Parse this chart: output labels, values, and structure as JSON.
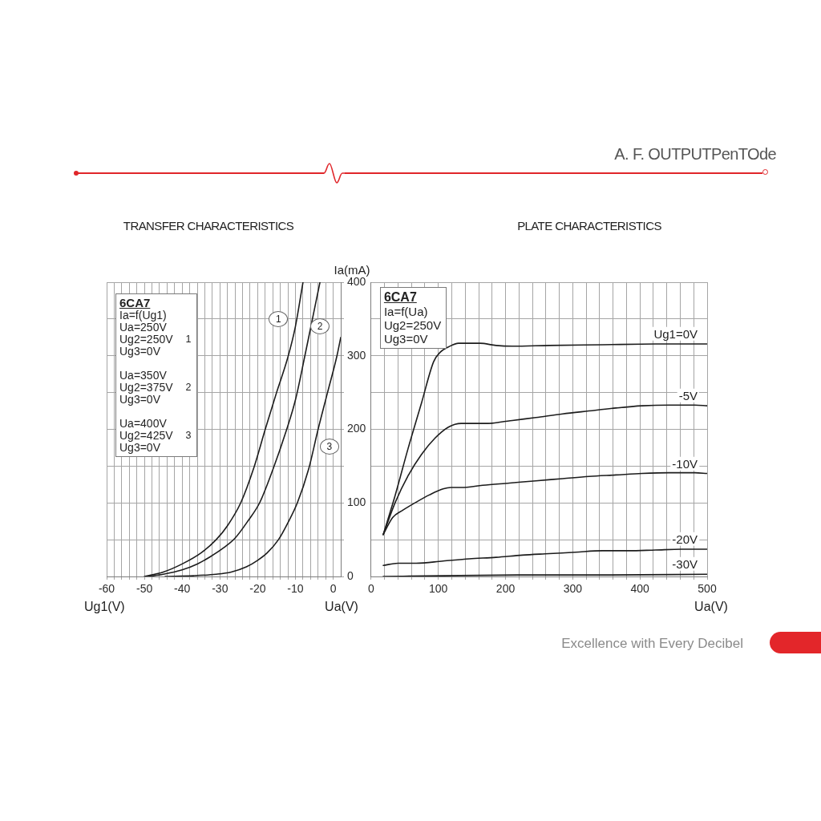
{
  "chart_data": [
    {
      "type": "line",
      "title": "TRANSFER CHARACTERISTICS",
      "xlabel": "Ug1(V)",
      "ylabel": "Ia(mA)",
      "series": [
        {
          "color": "#1c1c1c",
          "x": [
            -50,
            -45,
            -40,
            -35,
            -31,
            -28,
            -24.5,
            -21,
            -18,
            -15,
            -12,
            -10,
            -8
          ],
          "values": [
            0,
            6,
            17,
            32,
            50,
            69,
            100,
            148,
            200,
            250,
            298,
            340,
            400
          ]
        },
        {
          "color": "#1c1c1c",
          "x": [
            -49,
            -45,
            -40,
            -36,
            -32.5,
            -29,
            -26,
            -22.5,
            -19.5,
            -16,
            -12.5,
            -10,
            -7.5,
            -5.5,
            -3.5
          ],
          "values": [
            0,
            3,
            9,
            17,
            27,
            39,
            52,
            76,
            100,
            145,
            197,
            240,
            300,
            350,
            400
          ]
        },
        {
          "color": "#1c1c1c",
          "x": [
            -44.5,
            -37,
            -31,
            -27,
            -23,
            -20,
            -17.5,
            -14.5,
            -12,
            -9.5,
            -6.5,
            -4,
            -1.5,
            1,
            2
          ],
          "values": [
            0,
            1,
            3,
            6,
            13,
            22,
            32,
            50,
            73,
            100,
            146,
            200,
            250,
            300,
            325
          ]
        }
      ],
      "xlim": [
        -60,
        2
      ],
      "xticks": [
        -60,
        {
          "value": -58,
          "label": null
        },
        {
          "value": -56,
          "label": null
        },
        {
          "value": -54,
          "label": null
        },
        {
          "value": -52,
          "label": null
        },
        -50,
        {
          "value": -48,
          "label": null
        },
        {
          "value": -46,
          "label": null
        },
        {
          "value": -44,
          "label": null
        },
        {
          "value": -42,
          "label": null
        },
        -40,
        {
          "value": -38,
          "label": null
        },
        {
          "value": -36,
          "label": null
        },
        {
          "value": -34,
          "label": null
        },
        {
          "value": -32,
          "label": null
        },
        -30,
        {
          "value": -28,
          "label": null
        },
        {
          "value": -26,
          "label": null
        },
        {
          "value": -24,
          "label": null
        },
        {
          "value": -22,
          "label": null
        },
        -20,
        {
          "value": -18,
          "label": null
        },
        {
          "value": -16,
          "label": null
        },
        {
          "value": -14,
          "label": null
        },
        {
          "value": -12,
          "label": null
        },
        -10,
        {
          "value": -8,
          "label": null
        },
        {
          "value": -6,
          "label": null
        },
        {
          "value": -4,
          "label": null
        },
        {
          "value": -2,
          "label": null
        },
        0
      ],
      "ylim": [
        0,
        400
      ],
      "yticks": [
        0,
        {
          "value": 50,
          "label": null
        },
        100,
        {
          "value": 150,
          "label": null
        },
        200,
        {
          "value": 250,
          "label": null
        },
        300,
        {
          "value": 350,
          "label": null
        },
        400
      ],
      "grid": true,
      "marker": "none",
      "line_style": "solid",
      "annotations": [
        {
          "text": "1",
          "x": -14.5,
          "y": 350
        },
        {
          "text": "2",
          "x": -3.5,
          "y": 340
        },
        {
          "text": "3",
          "x": -1,
          "y": 177
        },
        "6CA7",
        "Ia=f(Ug1)",
        "Ua=250V\nUg2=250V\nUg3=0V",
        "1",
        "Ua=350V\nUg2=375V\nUg3=0V",
        "2",
        "Ua=400V\nUg2=425V\nUg3=0V",
        "3",
        "Ua(V)"
      ]
    },
    {
      "type": "line",
      "title": "PLATE CHARACTERISTICS",
      "xlabel": "Ua(V)",
      "series": [
        {
          "name": "Ug1=0V",
          "color": "#1c1c1c",
          "x": [
            18,
            36,
            55,
            75,
            93,
            103,
            115,
            130,
            146,
            162,
            186,
            210,
            265,
            344,
            423,
            500
          ],
          "values": [
            57,
            111,
            174,
            236,
            292,
            305,
            312,
            317,
            317,
            317,
            314,
            313,
            314,
            315,
            316,
            316
          ]
        },
        {
          "name": "-5V",
          "color": "#1c1c1c",
          "x": [
            18,
            36,
            55,
            75,
            95,
            115,
            134,
            154,
            174,
            194,
            210,
            245,
            285,
            324,
            364,
            403,
            443,
            482,
            500
          ],
          "values": [
            57,
            101,
            137,
            166,
            188,
            203,
            208,
            208,
            208,
            210,
            212,
            216,
            221,
            225,
            229,
            232,
            233,
            233,
            232
          ]
        },
        {
          "name": "-10V",
          "color": "#1c1c1c",
          "x": [
            18,
            32,
            47,
            67,
            87,
            107,
            119,
            134,
            166,
            206,
            245,
            285,
            324,
            364,
            403,
            443,
            482,
            500
          ],
          "values": [
            57,
            80,
            90,
            101,
            111,
            119,
            121,
            121,
            124,
            127,
            130,
            133,
            136,
            138,
            140,
            141,
            141,
            140
          ]
        },
        {
          "name": "-20V",
          "color": "#1c1c1c",
          "x": [
            18,
            40,
            67,
            107,
            146,
            186,
            225,
            265,
            304,
            344,
            383,
            423,
            462,
            500
          ],
          "values": [
            15,
            18,
            18,
            21,
            24,
            26,
            29,
            31,
            33,
            35,
            35,
            36,
            37,
            37
          ]
        },
        {
          "name": "-30V",
          "color": "#1c1c1c",
          "x": [
            18,
            107,
            225,
            344,
            500
          ],
          "values": [
            0,
            1,
            2,
            2,
            3
          ]
        }
      ],
      "xlim": [
        0,
        500
      ],
      "xticks": [
        0,
        {
          "value": 20,
          "label": null
        },
        {
          "value": 40,
          "label": null
        },
        {
          "value": 60,
          "label": null
        },
        {
          "value": 80,
          "label": null
        },
        100,
        {
          "value": 120,
          "label": null
        },
        {
          "value": 140,
          "label": null
        },
        {
          "value": 160,
          "label": null
        },
        {
          "value": 180,
          "label": null
        },
        200,
        {
          "value": 220,
          "label": null
        },
        {
          "value": 240,
          "label": null
        },
        {
          "value": 260,
          "label": null
        },
        {
          "value": 280,
          "label": null
        },
        300,
        {
          "value": 320,
          "label": null
        },
        {
          "value": 340,
          "label": null
        },
        {
          "value": 360,
          "label": null
        },
        {
          "value": 380,
          "label": null
        },
        400,
        {
          "value": 420,
          "label": null
        },
        {
          "value": 440,
          "label": null
        },
        {
          "value": 460,
          "label": null
        },
        {
          "value": 480,
          "label": null
        },
        500
      ],
      "ylim": [
        0,
        400
      ],
      "yticks": [
        0,
        {
          "value": 50,
          "label": null
        },
        100,
        {
          "value": 150,
          "label": null
        },
        200,
        {
          "value": 250,
          "label": null
        },
        300,
        {
          "value": 350,
          "label": null
        },
        400
      ],
      "tick_labels": "x",
      "grid": true,
      "marker": "none",
      "line_style": "solid",
      "annotations": [
        "6CA7",
        "Ia=f(Ua)",
        "Ug2=250V\nUg3=0V",
        "A. F. OUTPUTPenTOde",
        "Excellence with Every Decibel"
      ]
    }
  ]
}
